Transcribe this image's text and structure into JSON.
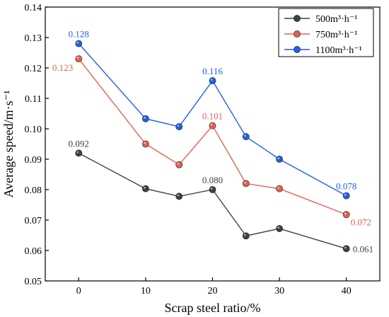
{
  "chart_data": {
    "type": "line",
    "xlabel": "Scrap steel ratio/%",
    "ylabel": "Average speed/m·s⁻¹",
    "xlim": [
      -5,
      45
    ],
    "ylim": [
      0.05,
      0.14
    ],
    "xticks": [
      0,
      10,
      20,
      30,
      40
    ],
    "yticks": [
      0.05,
      0.06,
      0.07,
      0.08,
      0.09,
      0.1,
      0.11,
      0.12,
      0.13,
      0.14
    ],
    "ytick_labels": [
      "0.05",
      "0.06",
      "0.07",
      "0.08",
      "0.09",
      "0.10",
      "0.11",
      "0.12",
      "0.13",
      "0.14"
    ],
    "x": [
      0,
      10,
      15,
      20,
      25,
      30,
      40
    ],
    "legend_position": "top-right",
    "grid": false,
    "series": [
      {
        "name": "500m³·h⁻¹",
        "color": "#404040",
        "values": [
          0.092,
          0.0803,
          0.0778,
          0.08,
          0.0648,
          0.0672,
          0.0606
        ],
        "labels": [
          {
            "index": 0,
            "text": "0.092",
            "pos": "above"
          },
          {
            "index": 3,
            "text": "0.080",
            "pos": "above"
          },
          {
            "index": 6,
            "text": "0.061",
            "pos": "right"
          }
        ]
      },
      {
        "name": "750m³·h⁻¹",
        "color": "#e06050",
        "values": [
          0.123,
          0.095,
          0.0882,
          0.101,
          0.082,
          0.0803,
          0.0718
        ],
        "labels": [
          {
            "index": 0,
            "text": "0.123",
            "pos": "below-left"
          },
          {
            "index": 3,
            "text": "0.101",
            "pos": "above"
          },
          {
            "index": 6,
            "text": "0.072",
            "pos": "below-right"
          }
        ]
      },
      {
        "name": "1100m³·h⁻¹",
        "color": "#2060e0",
        "values": [
          0.128,
          0.1033,
          0.1007,
          0.1158,
          0.0974,
          0.09,
          0.078
        ],
        "labels": [
          {
            "index": 0,
            "text": "0.128",
            "pos": "above"
          },
          {
            "index": 3,
            "text": "0.116",
            "pos": "above"
          },
          {
            "index": 6,
            "text": "0.078",
            "pos": "above"
          }
        ]
      }
    ]
  }
}
